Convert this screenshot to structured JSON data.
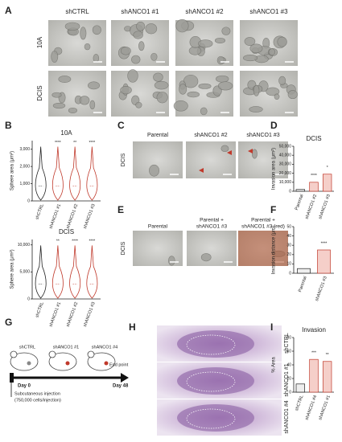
{
  "panels": {
    "A": {
      "letter": "A",
      "columns": [
        "shCTRL",
        "shANCO1 #1",
        "shANCO1 #2",
        "shANCO1 #3"
      ],
      "rows": [
        "10A",
        "DCIS"
      ]
    },
    "B": {
      "letter": "B",
      "charts": [
        {
          "type": "violin",
          "title": "10A",
          "ylabel": "Sphere area (μm²)",
          "categories": [
            "shCTRL",
            "shANCO1 #1",
            "shANCO1 #2",
            "shANCO1 #3"
          ],
          "colors": [
            "#222222",
            "#c0392b",
            "#c0392b",
            "#c0392b"
          ],
          "significance": [
            null,
            "****",
            "**",
            "****"
          ],
          "ylim": [
            0,
            3500
          ],
          "yticks": [
            0,
            {
              "value": 1000,
              "label": "1,000"
            },
            {
              "value": 2000,
              "label": "2,000"
            },
            {
              "value": 3000,
              "label": "3,000"
            }
          ]
        },
        {
          "type": "violin",
          "title": "DCIS",
          "ylabel": "Sphere area (μm²)",
          "categories": [
            "shCTRL",
            "shANCO1 #1",
            "shANCO1 #2",
            "shANCO1 #3"
          ],
          "colors": [
            "#222222",
            "#c0392b",
            "#c0392b",
            "#c0392b"
          ],
          "significance": [
            null,
            "**",
            "****",
            "****"
          ],
          "ylim": [
            0,
            11000
          ],
          "yticks": [
            0,
            {
              "value": 5000,
              "label": "5,000"
            },
            {
              "value": 10000,
              "label": "10,000"
            }
          ]
        }
      ]
    },
    "C": {
      "letter": "C",
      "columns": [
        "Parental",
        "shANCO1 #2",
        "shANCO1 #3"
      ],
      "row": "DCIS"
    },
    "D": {
      "letter": "D",
      "chart": {
        "type": "bar",
        "title": "DCIS",
        "ylabel": "Invasion area (μm²)",
        "categories": [
          "Parental",
          "shANCO1 #2",
          "shANCO1 #3"
        ],
        "colors": [
          "#222222",
          "#c0392b",
          "#c0392b"
        ],
        "values": [
          2000,
          10000,
          19000
        ],
        "significance": [
          null,
          "****",
          "*"
        ],
        "ylim": [
          0,
          50000
        ],
        "yticks": [
          0,
          {
            "value": 10000,
            "label": "10,000"
          },
          {
            "value": 20000,
            "label": "20,000"
          },
          {
            "value": 30000,
            "label": "30,000"
          },
          {
            "value": 40000,
            "label": "40,000"
          },
          {
            "value": 50000,
            "label": "50,000"
          }
        ]
      }
    },
    "E": {
      "letter": "E",
      "columns": [
        [
          "Parental"
        ],
        [
          "Parental +",
          "shANCO1 #3"
        ],
        [
          "Parental +",
          "shANCO1 #3 (red)"
        ]
      ],
      "row": "DCIS"
    },
    "F": {
      "letter": "F",
      "chart": {
        "type": "bar",
        "ylabel": "Invasion distance (μm)",
        "categories": [
          "Parental",
          "shANCO1 #3"
        ],
        "colors": [
          "#222222",
          "#c0392b"
        ],
        "values": [
          5,
          25
        ],
        "significance": [
          null,
          "****"
        ],
        "ylim": [
          0,
          50
        ],
        "yticks": [
          0,
          10,
          20,
          30,
          40,
          50
        ]
      }
    },
    "G": {
      "letter": "G",
      "mice": [
        "shCTRL",
        "shANCO1 #1",
        "shANCO1 #4"
      ],
      "start": "Day 0",
      "end_label": "End point",
      "end": "Day 48",
      "injection": "Subcutaneous injection",
      "cells": "(750,000 cells/injection)"
    },
    "H": {
      "letter": "H",
      "rows": [
        "shCTRL",
        "shANCO1 #1",
        "shANCO1 #4"
      ]
    },
    "I": {
      "letter": "I",
      "chart": {
        "type": "bar",
        "title": "Invasion",
        "ylabel": "% Area",
        "categories": [
          "shCTRL",
          "shANCO1 #4",
          "shANCO1 #1"
        ],
        "colors": [
          "#222222",
          "#c0392b",
          "#c0392b"
        ],
        "values": [
          12,
          48,
          45
        ],
        "significance": [
          null,
          "***",
          "**"
        ],
        "ylim": [
          0,
          80
        ],
        "yticks": [
          0,
          20,
          40,
          60,
          80
        ]
      }
    }
  }
}
